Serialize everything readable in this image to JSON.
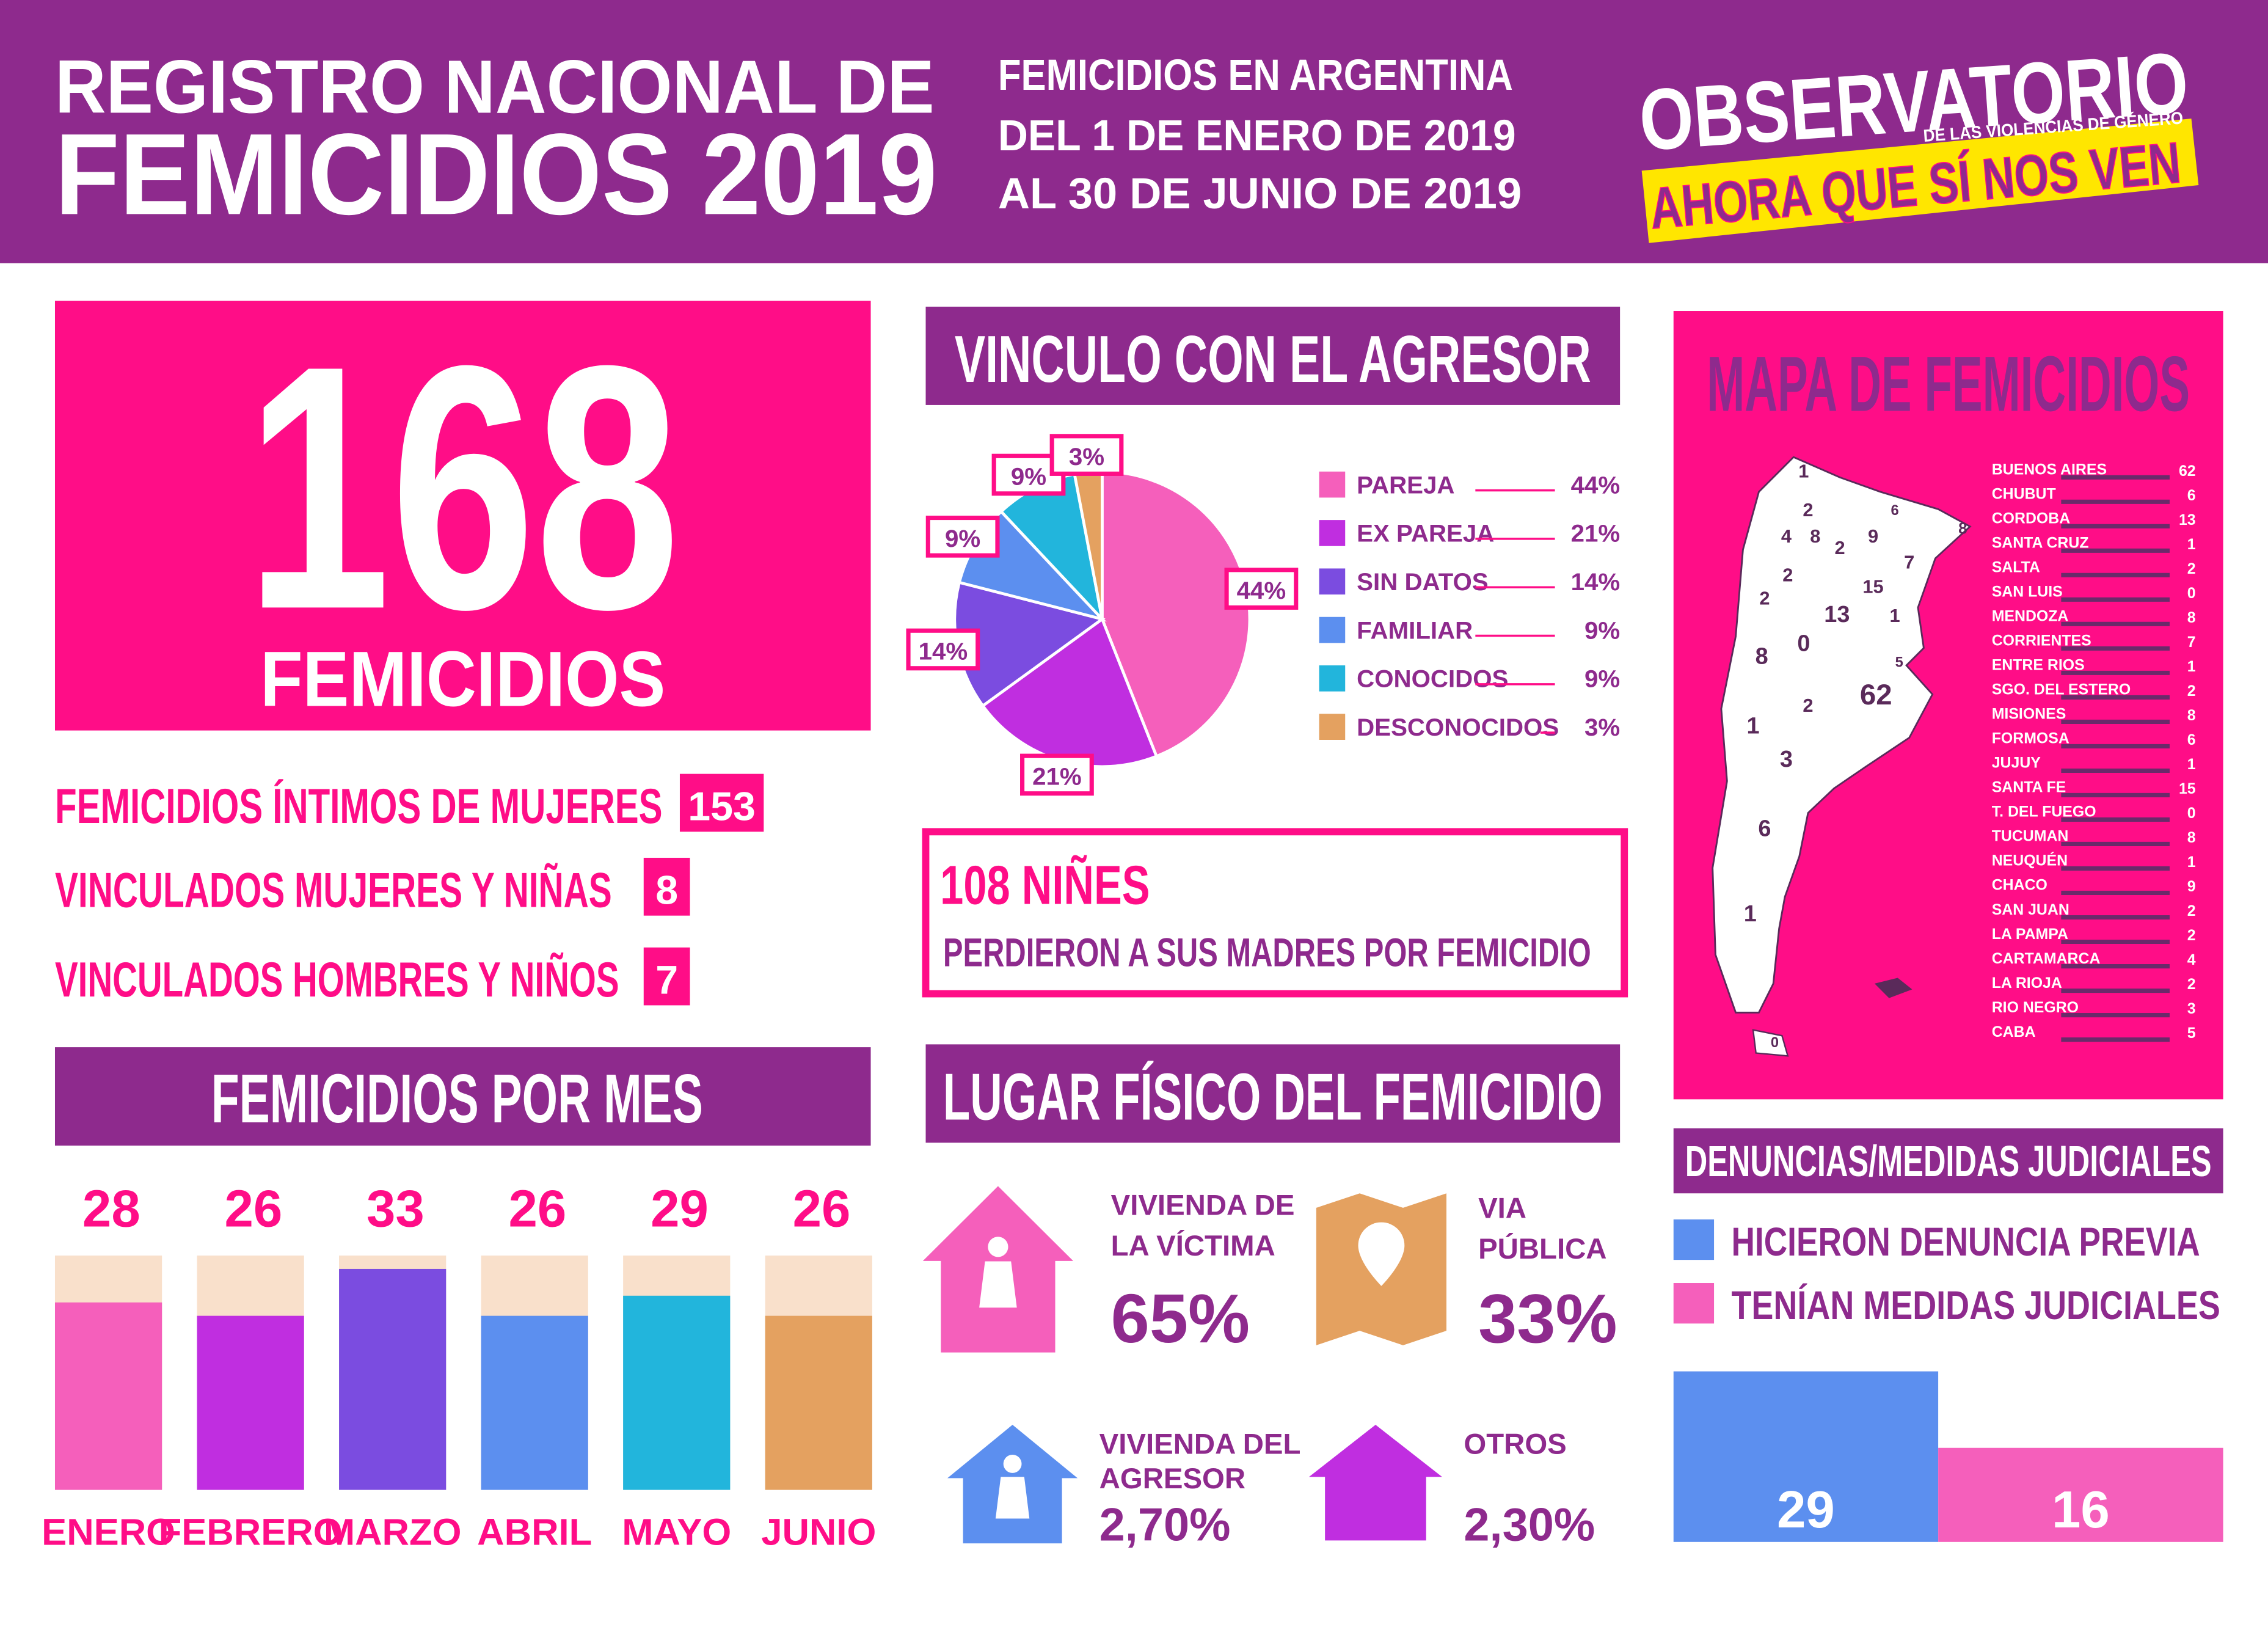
{
  "header": {
    "title_line1": "REGISTRO NACIONAL DE",
    "title_line2": "FEMICIDIOS 2019",
    "subtitle_line1": "FEMICIDIOS EN ARGENTINA",
    "subtitle_line2": "DEL 1 DE ENERO DE 2019",
    "subtitle_line3": "AL 30 DE JUNIO DE 2019",
    "logo_title": "OBSERVATORIO",
    "logo_subtitle": "DE LAS VIOLENCIAS DE GÉNERO",
    "logo_tagline": "AHORA QUE SÍ NOS VEN"
  },
  "total": {
    "value": 168,
    "label": "FEMICIDIOS"
  },
  "breakdown": [
    {
      "label": "FEMICIDIOS ÍNTIMOS DE MUJERES",
      "value": 153
    },
    {
      "label": "VINCULADOS MUJERES Y NIÑAS",
      "value": 8
    },
    {
      "label": "VINCULADOS HOMBRES Y NIÑOS",
      "value": 7
    }
  ],
  "vinculo": {
    "type": "pie",
    "title": "VINCULO CON EL AGRESOR",
    "categories": [
      "PAREJA",
      "EX PAREJA",
      "SIN DATOS",
      "FAMILIAR",
      "CONOCIDOS",
      "DESCONOCIDOS"
    ],
    "values": [
      44,
      21,
      14,
      9,
      9,
      3
    ],
    "value_labels": [
      "44%",
      "21%",
      "14%",
      "9%",
      "9%",
      "3%"
    ],
    "colors": [
      "#f55fbb",
      "#c02ee0",
      "#7b4ce0",
      "#5c8fef",
      "#22b5dc",
      "#e4a160"
    ]
  },
  "ninez": {
    "headline": "108 NIÑES",
    "text": "PERDIERON A SUS MADRES POR FEMICIDIO"
  },
  "por_mes": {
    "type": "bar",
    "title": "FEMICIDIOS POR MES",
    "categories": [
      "ENERO",
      "FEBRERO",
      "MARZO",
      "ABRIL",
      "MAYO",
      "JUNIO"
    ],
    "values": [
      28,
      26,
      33,
      26,
      29,
      26
    ],
    "colors": [
      "#f55fbb",
      "#c02ee0",
      "#7b4ce0",
      "#5c8fef",
      "#22b5dc",
      "#e4a160"
    ],
    "ylim": [
      0,
      35
    ]
  },
  "lugar": {
    "title": "LUGAR FÍSICO DEL FEMICIDIO",
    "items": [
      {
        "label": [
          "VIVIENDA DE",
          "LA VÍCTIMA"
        ],
        "value": "65%"
      },
      {
        "label": [
          "VIA",
          "PÚBLICA"
        ],
        "value": "33%"
      },
      {
        "label": [
          "VIVIENDA DEL",
          "AGRESOR"
        ],
        "value": "2,70%"
      },
      {
        "label": [
          "OTROS"
        ],
        "value": "2,30%"
      }
    ]
  },
  "mapa": {
    "title": "MAPA DE FEMICIDIOS",
    "provinces": [
      {
        "name": "BUENOS AIRES",
        "value": 62
      },
      {
        "name": "CHUBUT",
        "value": 6
      },
      {
        "name": "CORDOBA",
        "value": 13
      },
      {
        "name": "SANTA CRUZ",
        "value": 1
      },
      {
        "name": "SALTA",
        "value": 2
      },
      {
        "name": "SAN LUIS",
        "value": 0
      },
      {
        "name": "MENDOZA",
        "value": 8
      },
      {
        "name": "CORRIENTES",
        "value": 7
      },
      {
        "name": "ENTRE RIOS",
        "value": 1
      },
      {
        "name": "SGO. DEL ESTERO",
        "value": 2
      },
      {
        "name": "MISIONES",
        "value": 8
      },
      {
        "name": "FORMOSA",
        "value": 6
      },
      {
        "name": "JUJUY",
        "value": 1
      },
      {
        "name": "SANTA FE",
        "value": 15
      },
      {
        "name": "T. DEL FUEGO",
        "value": 0
      },
      {
        "name": "TUCUMAN",
        "value": 8
      },
      {
        "name": "NEUQUÉN",
        "value": 1
      },
      {
        "name": "CHACO",
        "value": 9
      },
      {
        "name": "SAN JUAN",
        "value": 2
      },
      {
        "name": "LA PAMPA",
        "value": 2
      },
      {
        "name": "CARTAMARCA",
        "value": 4
      },
      {
        "name": "LA RIOJA",
        "value": 2
      },
      {
        "name": "RIO NEGRO",
        "value": 3
      },
      {
        "name": "CABA",
        "value": 5
      }
    ]
  },
  "denuncias": {
    "type": "bar",
    "title": "DENUNCIAS/MEDIDAS JUDICIALES",
    "series": [
      {
        "name": "HICIERON DENUNCIA PREVIA",
        "color": "#5c8fef",
        "value": 29
      },
      {
        "name": "TENÍAN MEDIDAS JUDICIALES",
        "color": "#f55fbb",
        "value": 16
      }
    ],
    "ylim": [
      0,
      30
    ]
  }
}
